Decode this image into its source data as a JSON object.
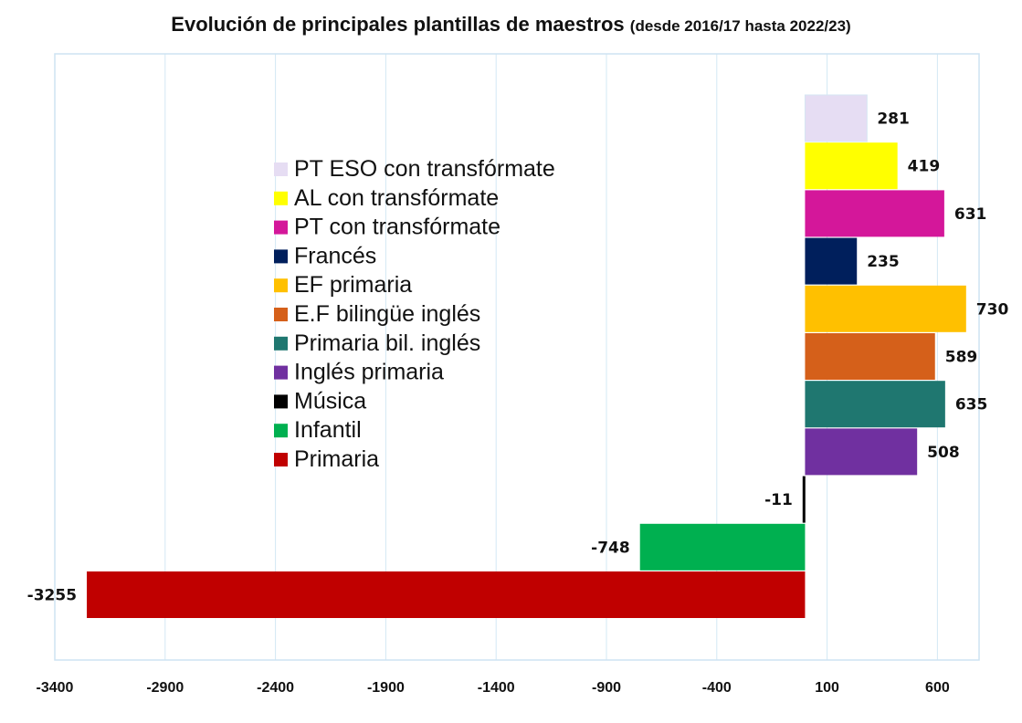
{
  "chart_data": {
    "type": "bar",
    "orientation": "horizontal",
    "title": "Evolución de principales plantillas de maestros",
    "subtitle": "(desde 2016/17 hasta 2022/23)",
    "xlabel": "",
    "ylabel": "",
    "xlim": [
      -3400,
      850
    ],
    "x_ticks": [
      -3400,
      -2900,
      -2400,
      -1900,
      -1400,
      -900,
      -400,
      100,
      600
    ],
    "grid": true,
    "legend_position": "left-center",
    "categories": [
      "PT ESO con transfórmate",
      "AL con transfórmate",
      "PT con transfórmate",
      "Francés",
      "EF primaria",
      "E.F bilingüe inglés",
      "Primaria bil. inglés",
      "Inglés primaria",
      "Música",
      "Infantil",
      "Primaria"
    ],
    "values": [
      281,
      419,
      631,
      235,
      730,
      589,
      635,
      508,
      -11,
      -748,
      -3255
    ],
    "colors": [
      "#e6ddf3",
      "#ffff00",
      "#d4179a",
      "#001f5c",
      "#ffc000",
      "#d5601a",
      "#1f7770",
      "#7030a0",
      "#000000",
      "#00b050",
      "#c00000"
    ],
    "grid_color": "#d3e8f4",
    "axis_frame_color": "#cde3f2"
  }
}
